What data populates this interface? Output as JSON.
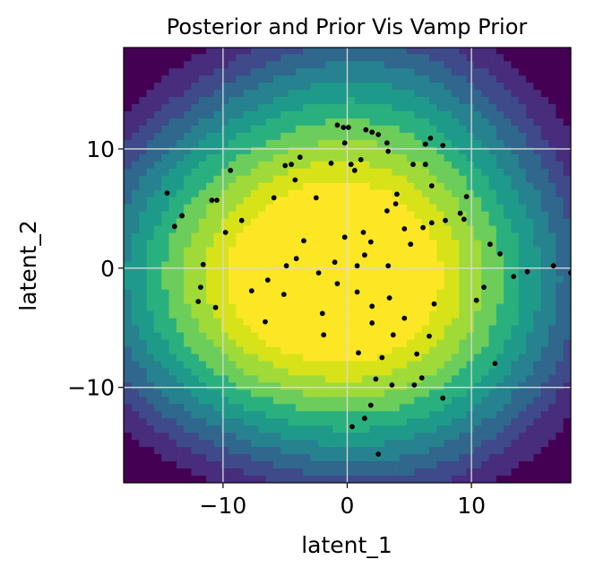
{
  "chart_data": {
    "type": "scatter",
    "title": "Posterior and Prior Vis Vamp Prior",
    "xlabel": "latent_1",
    "ylabel": "latent_2",
    "xlim": [
      -18,
      18
    ],
    "ylim": [
      -18,
      18.5
    ],
    "xticks": [
      -10,
      0,
      10
    ],
    "yticks": [
      -10,
      0,
      10
    ],
    "xtick_labels": [
      "−10",
      "0",
      "10"
    ],
    "ytick_labels": [
      "−10",
      "0",
      "10"
    ],
    "grid": true,
    "background": "filled contour of prior density (viridis), peak near (0, 0)",
    "contour_colors": [
      "#fde725",
      "#d8e219",
      "#a0da39",
      "#6ccd5a",
      "#2ab07f",
      "#1f9a8a",
      "#26828e",
      "#30678d",
      "#3e4a89",
      "#472d7b",
      "#440154"
    ],
    "point_color": "#000000",
    "clusters": [
      {
        "center": [
          -7,
          2
        ],
        "spread": [
          2.2,
          1.8
        ]
      },
      {
        "center": [
          -3.2,
          -2.8
        ],
        "spread": [
          1.6,
          1.4
        ]
      },
      {
        "center": [
          -8.8,
          -2.2
        ],
        "spread": [
          1.3,
          1.1
        ]
      },
      {
        "center": [
          0.5,
          0.1
        ],
        "spread": [
          0.9,
          0.6
        ]
      },
      {
        "center": [
          8.2,
          -0.5
        ],
        "spread": [
          1.8,
          1.3
        ]
      },
      {
        "center": [
          4,
          -6.2
        ],
        "spread": [
          1.2,
          1.6
        ]
      },
      {
        "center": [
          1.7,
          10.6
        ],
        "spread": [
          1.5,
          0.9
        ]
      }
    ],
    "points": [
      [
        -14.5,
        6.3
      ],
      [
        -13.9,
        3.5
      ],
      [
        -13.3,
        4.4
      ],
      [
        -11.8,
        -1.6
      ],
      [
        -10.9,
        5.7
      ],
      [
        -10.5,
        5.7
      ],
      [
        -10.6,
        -3.3
      ],
      [
        -9.4,
        8.2
      ],
      [
        -5.0,
        8.6
      ],
      [
        -4.5,
        8.7
      ],
      [
        -3.8,
        9.3
      ],
      [
        -2.5,
        5.9
      ],
      [
        -1.3,
        8.8
      ],
      [
        -0.8,
        12.0
      ],
      [
        -0.3,
        11.8
      ],
      [
        -0.2,
        10.5
      ],
      [
        0.1,
        11.8
      ],
      [
        1.5,
        11.6
      ],
      [
        2.0,
        11.4
      ],
      [
        2.5,
        11.2
      ],
      [
        3.2,
        10.5
      ],
      [
        0.3,
        8.7
      ],
      [
        0.6,
        8.2
      ],
      [
        1.1,
        9.1
      ],
      [
        3.3,
        9.8
      ],
      [
        5.3,
        8.7
      ],
      [
        6.3,
        10.4
      ],
      [
        6.7,
        10.9
      ],
      [
        7.7,
        10.3
      ],
      [
        6.3,
        8.7
      ],
      [
        4.0,
        6.2
      ],
      [
        3.9,
        5.4
      ],
      [
        3.2,
        4.8
      ],
      [
        6.1,
        3.4
      ],
      [
        6.8,
        3.8
      ],
      [
        7.9,
        4.0
      ],
      [
        9.1,
        4.6
      ],
      [
        9.4,
        4.1
      ],
      [
        9.6,
        6.0
      ],
      [
        11.5,
        2.0
      ],
      [
        12.3,
        1.2
      ],
      [
        13.4,
        -0.7
      ],
      [
        14.5,
        -0.3
      ],
      [
        16.6,
        0.2
      ],
      [
        18.0,
        -0.4
      ],
      [
        11.9,
        -8.0
      ],
      [
        7.7,
        -10.9
      ],
      [
        2.5,
        -15.6
      ],
      [
        1.4,
        -12.6
      ],
      [
        1.9,
        -11.5
      ],
      [
        0.4,
        -13.3
      ],
      [
        2.3,
        -9.3
      ],
      [
        3.6,
        -9.8
      ],
      [
        5.4,
        -9.8
      ],
      [
        6.0,
        -9.2
      ],
      [
        0.8,
        0.2
      ],
      [
        1.4,
        1.1
      ],
      [
        1.9,
        2.2
      ],
      [
        3.3,
        0.2
      ],
      [
        4.6,
        3.3
      ],
      [
        3.4,
        -2.5
      ],
      [
        2.0,
        -3.2
      ],
      [
        -1.0,
        0.5
      ],
      [
        -0.8,
        -1.3
      ],
      [
        -2.3,
        -0.4
      ],
      [
        -0.2,
        2.6
      ],
      [
        0.8,
        -2.0
      ],
      [
        -6.6,
        -4.5
      ],
      [
        -7.7,
        -1.9
      ],
      [
        -12.0,
        -2.8
      ],
      [
        -11.6,
        0.3
      ],
      [
        -5.9,
        5.9
      ],
      [
        -4.2,
        7.4
      ],
      [
        -3.5,
        2.3
      ],
      [
        1.3,
        3.0
      ],
      [
        -2.0,
        -3.8
      ],
      [
        -1.9,
        -5.6
      ],
      [
        -4.1,
        0.8
      ],
      [
        -8.5,
        4.0
      ],
      [
        -9.8,
        3.0
      ],
      [
        -6.4,
        -1.0
      ],
      [
        -5.1,
        -2.2
      ],
      [
        -4.9,
        0.2
      ],
      [
        5.1,
        2.0
      ],
      [
        6.8,
        6.9
      ],
      [
        10.4,
        -2.7
      ],
      [
        11.0,
        -1.6
      ],
      [
        7.0,
        -3.0
      ],
      [
        4.6,
        -4.2
      ],
      [
        2.8,
        -7.5
      ],
      [
        5.6,
        -7.2
      ],
      [
        6.6,
        -5.7
      ],
      [
        3.7,
        -5.6
      ],
      [
        0.9,
        -7.1
      ],
      [
        2.0,
        -4.6
      ]
    ]
  }
}
